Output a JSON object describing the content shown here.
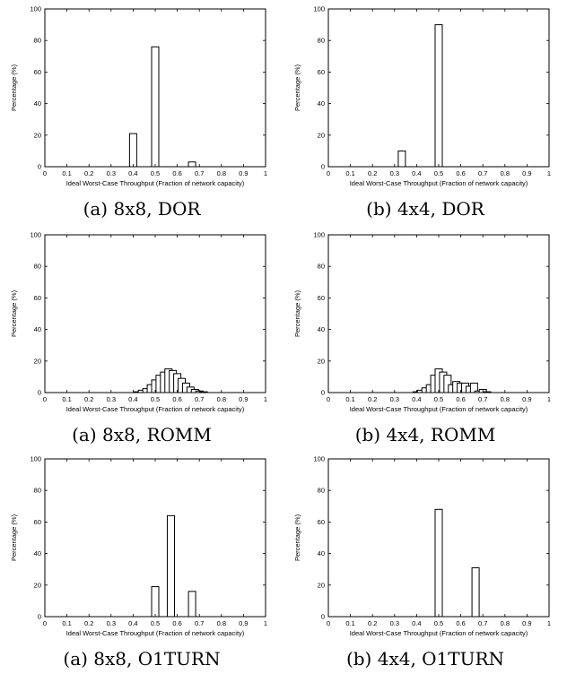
{
  "chart_data": [
    {
      "type": "bar",
      "caption": "(a) 8x8, DOR",
      "xlabel": "Ideal Worst-Case Throughput (Fraction of network capacity)",
      "ylabel": "Percentage (%)",
      "xlim": [
        0,
        1
      ],
      "ylim": [
        0,
        100
      ],
      "xticks": [
        "0",
        "0.1",
        "0.2",
        "0.3",
        "0.4",
        "0.5",
        "0.6",
        "0.7",
        "0.8",
        "0.9",
        "1"
      ],
      "yticks": [
        "0",
        "20",
        "40",
        "60",
        "80",
        "100"
      ],
      "grid": false,
      "bars": [
        {
          "x": 0.4,
          "y": 21
        },
        {
          "x": 0.5,
          "y": 76
        },
        {
          "x": 0.667,
          "y": 3
        }
      ]
    },
    {
      "type": "bar",
      "caption": "(b) 4x4, DOR",
      "xlabel": "Ideal Worst-Case Throughput (Fraction of network capacity)",
      "ylabel": "Percentage (%)",
      "xlim": [
        0,
        1
      ],
      "ylim": [
        0,
        100
      ],
      "xticks": [
        "0",
        "0.1",
        "0.2",
        "0.3",
        "0.4",
        "0.5",
        "0.6",
        "0.7",
        "0.8",
        "0.9",
        "1"
      ],
      "yticks": [
        "0",
        "20",
        "40",
        "60",
        "80",
        "100"
      ],
      "grid": false,
      "bars": [
        {
          "x": 0.333,
          "y": 10
        },
        {
          "x": 0.5,
          "y": 90
        }
      ]
    },
    {
      "type": "bar",
      "caption": "(a) 8x8, ROMM",
      "xlabel": "Ideal Worst-Case Throughput (Fraction of network capacity)",
      "ylabel": "Percentage (%)",
      "xlim": [
        0,
        1
      ],
      "ylim": [
        0,
        100
      ],
      "xticks": [
        "0",
        "0.1",
        "0.2",
        "0.3",
        "0.4",
        "0.5",
        "0.6",
        "0.7",
        "0.8",
        "0.9",
        "1"
      ],
      "yticks": [
        "0",
        "20",
        "40",
        "60",
        "80",
        "100"
      ],
      "grid": false,
      "bars": [
        {
          "x": 0.42,
          "y": 0.5
        },
        {
          "x": 0.44,
          "y": 1.5
        },
        {
          "x": 0.46,
          "y": 2.5
        },
        {
          "x": 0.48,
          "y": 5
        },
        {
          "x": 0.5,
          "y": 8
        },
        {
          "x": 0.52,
          "y": 11
        },
        {
          "x": 0.54,
          "y": 13
        },
        {
          "x": 0.56,
          "y": 15
        },
        {
          "x": 0.58,
          "y": 14
        },
        {
          "x": 0.6,
          "y": 12
        },
        {
          "x": 0.62,
          "y": 9
        },
        {
          "x": 0.64,
          "y": 6
        },
        {
          "x": 0.66,
          "y": 3.5
        },
        {
          "x": 0.68,
          "y": 2
        },
        {
          "x": 0.7,
          "y": 1
        },
        {
          "x": 0.72,
          "y": 0.5
        }
      ]
    },
    {
      "type": "bar",
      "caption": "(b) 4x4, ROMM",
      "xlabel": "Ideal Worst-Case Throughput (Fraction of network capacity)",
      "ylabel": "Percentage (%)",
      "xlim": [
        0,
        1
      ],
      "ylim": [
        0,
        100
      ],
      "xticks": [
        "0",
        "0.1",
        "0.2",
        "0.3",
        "0.4",
        "0.5",
        "0.6",
        "0.7",
        "0.8",
        "0.9",
        "1"
      ],
      "yticks": [
        "0",
        "20",
        "40",
        "60",
        "80",
        "100"
      ],
      "grid": false,
      "bars": [
        {
          "x": 0.4,
          "y": 0.5
        },
        {
          "x": 0.42,
          "y": 1.5
        },
        {
          "x": 0.44,
          "y": 3
        },
        {
          "x": 0.46,
          "y": 5
        },
        {
          "x": 0.48,
          "y": 11
        },
        {
          "x": 0.5,
          "y": 15
        },
        {
          "x": 0.52,
          "y": 13
        },
        {
          "x": 0.54,
          "y": 11
        },
        {
          "x": 0.56,
          "y": 5
        },
        {
          "x": 0.58,
          "y": 7
        },
        {
          "x": 0.6,
          "y": 6
        },
        {
          "x": 0.62,
          "y": 6
        },
        {
          "x": 0.64,
          "y": 4
        },
        {
          "x": 0.66,
          "y": 6
        },
        {
          "x": 0.68,
          "y": 1
        },
        {
          "x": 0.7,
          "y": 2
        },
        {
          "x": 0.72,
          "y": 0.5
        }
      ]
    },
    {
      "type": "bar",
      "caption": "(a) 8x8, O1TURN",
      "xlabel": "Ideal Worst-Case Throughput (Fraction of network capacity)",
      "ylabel": "Percentage (%)",
      "xlim": [
        0,
        1
      ],
      "ylim": [
        0,
        100
      ],
      "xticks": [
        "0",
        "0.1",
        "0.2",
        "0.3",
        "0.4",
        "0.5",
        "0.6",
        "0.7",
        "0.8",
        "0.9",
        "1"
      ],
      "yticks": [
        "0",
        "20",
        "40",
        "60",
        "80",
        "100"
      ],
      "grid": false,
      "bars": [
        {
          "x": 0.5,
          "y": 19
        },
        {
          "x": 0.571,
          "y": 64
        },
        {
          "x": 0.667,
          "y": 16
        }
      ]
    },
    {
      "type": "bar",
      "caption": "(b) 4x4, O1TURN",
      "xlabel": "Ideal Worst-Case Throughput (Fraction of network capacity)",
      "ylabel": "Percentage (%)",
      "xlim": [
        0,
        1
      ],
      "ylim": [
        0,
        100
      ],
      "xticks": [
        "0",
        "0.1",
        "0.2",
        "0.3",
        "0.4",
        "0.5",
        "0.6",
        "0.7",
        "0.8",
        "0.9",
        "1"
      ],
      "yticks": [
        "0",
        "20",
        "40",
        "60",
        "80",
        "100"
      ],
      "grid": false,
      "bars": [
        {
          "x": 0.5,
          "y": 68
        },
        {
          "x": 0.667,
          "y": 31
        }
      ]
    }
  ]
}
